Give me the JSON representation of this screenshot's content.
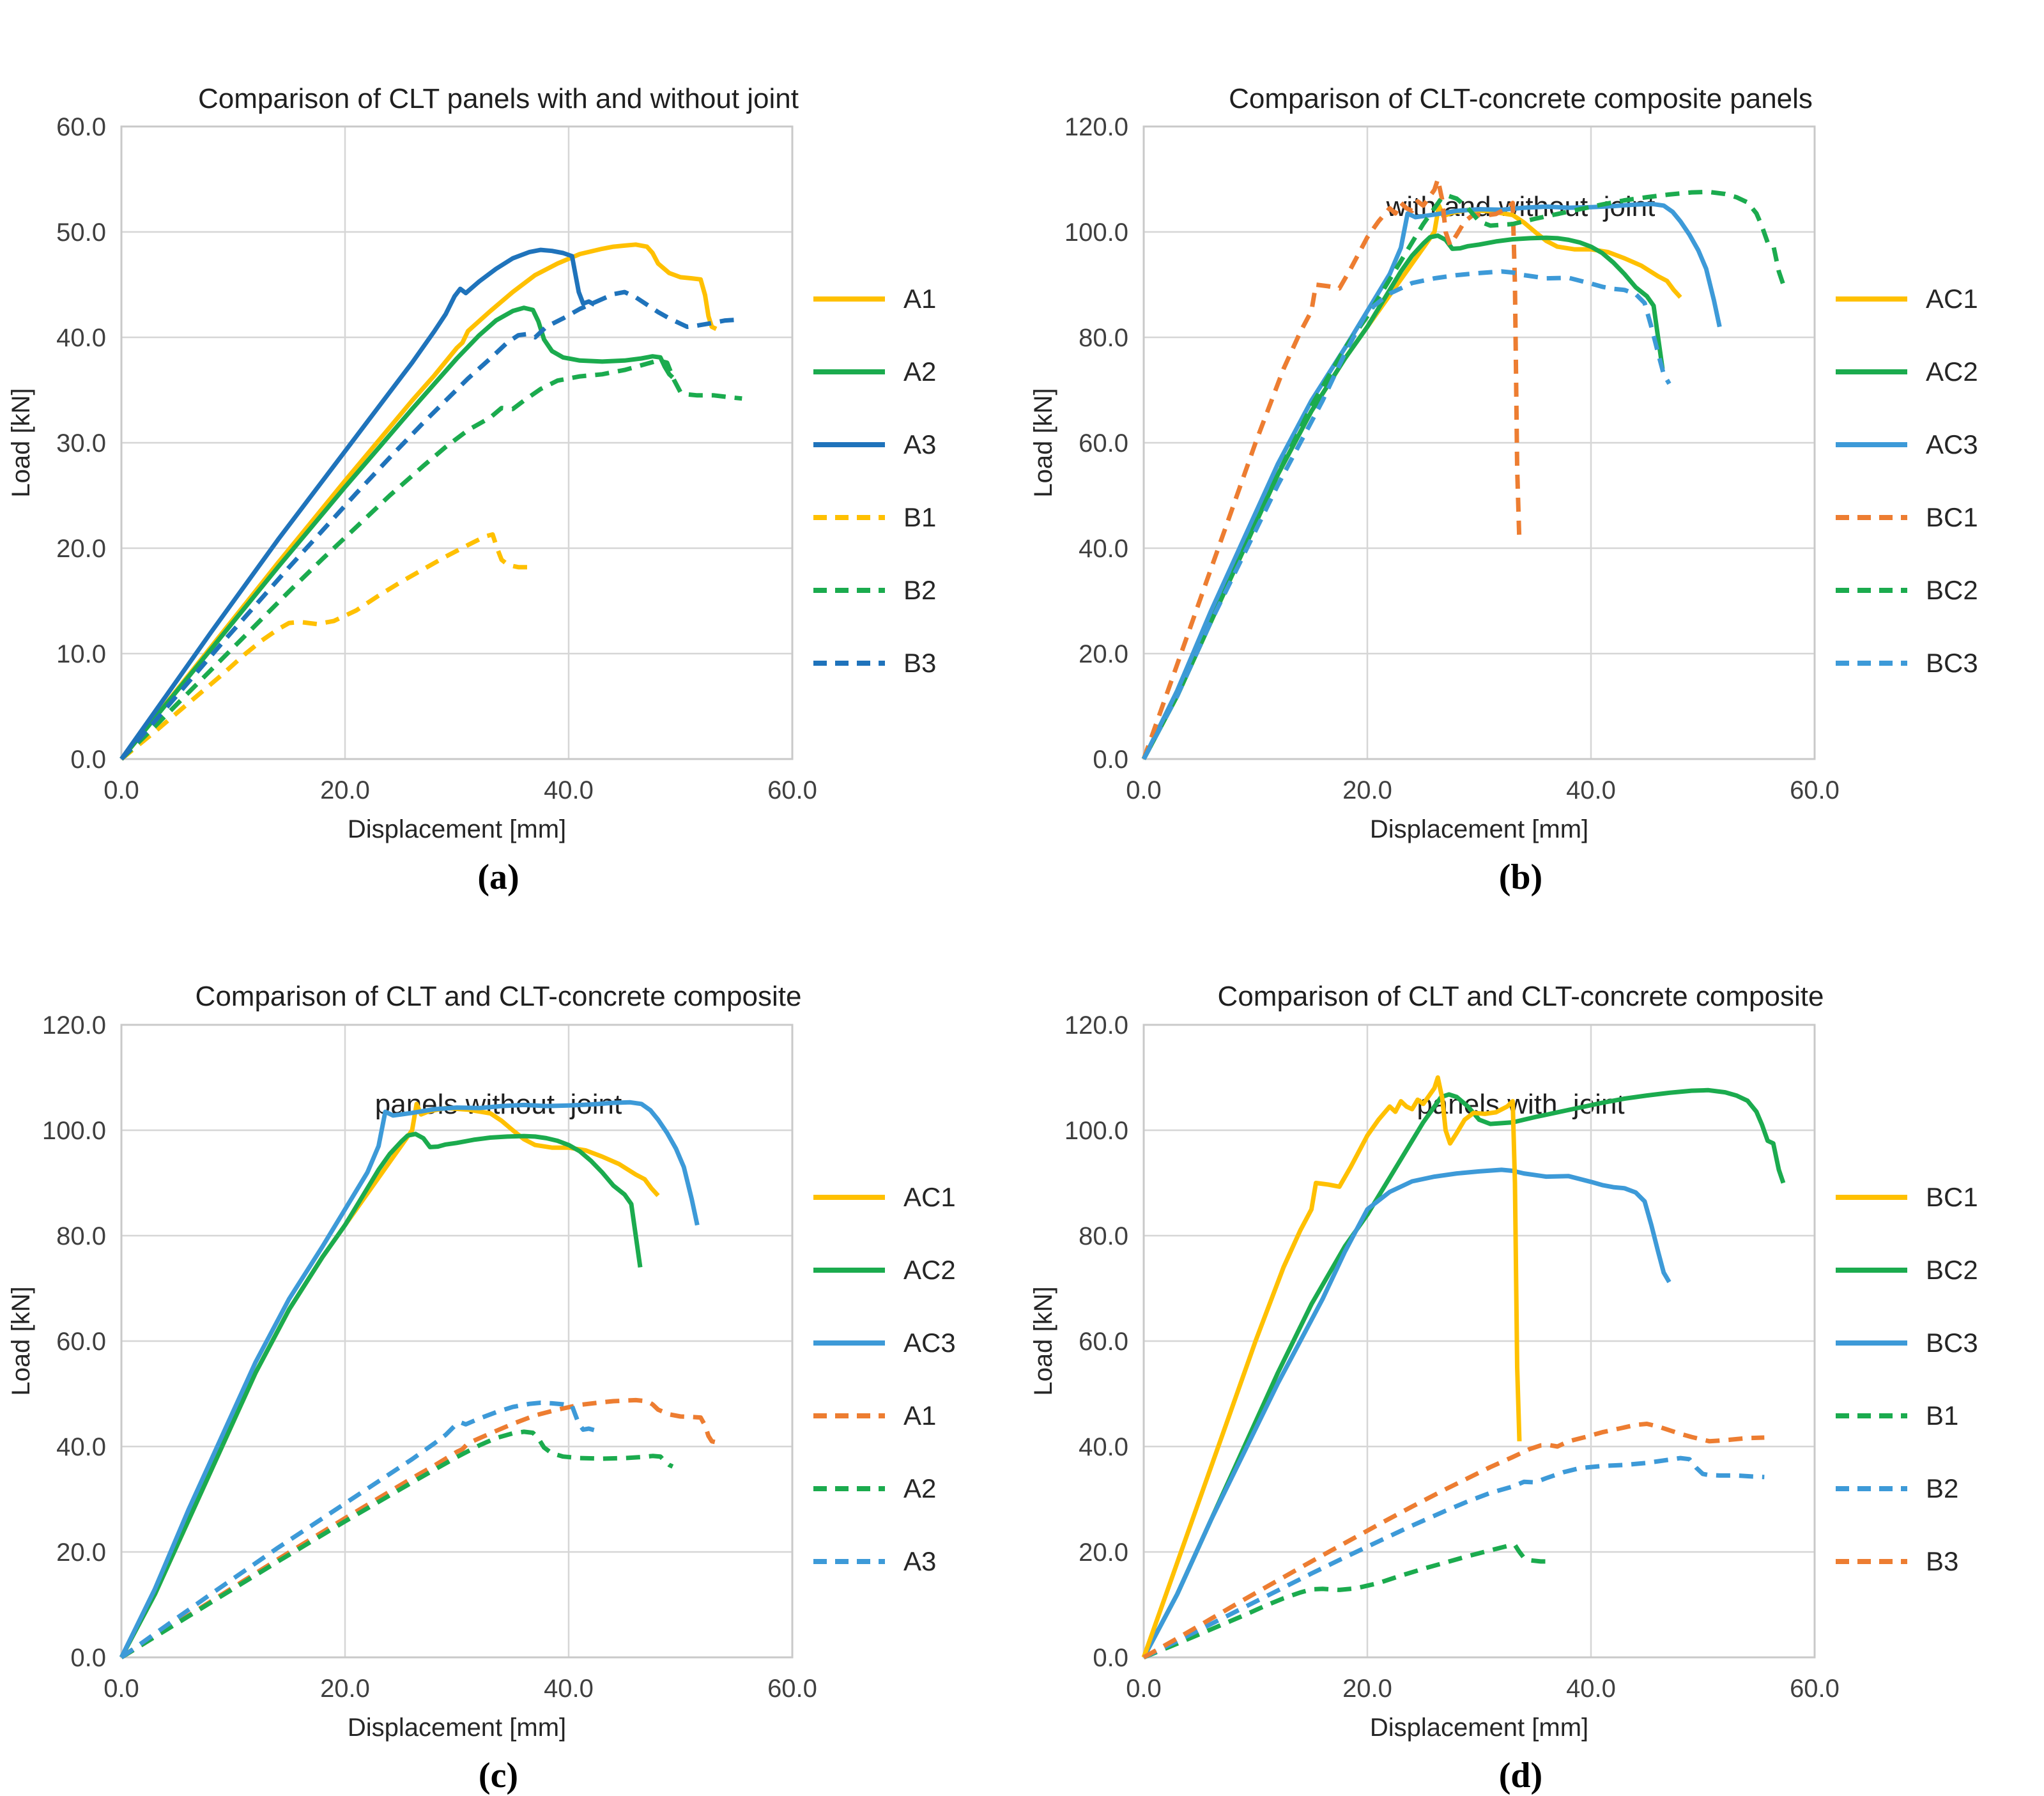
{
  "colors": {
    "yellow": "#FFC000",
    "green": "#1BAB4E",
    "blue_dark": "#1F73BB",
    "blue_light": "#3D9AD8",
    "orange": "#ED7D31",
    "grid": "#D6D6D6",
    "border": "#C9C9C9",
    "tick_text": "#3F3F3F",
    "title_text": "#1F1F1F"
  },
  "curves": {
    "A1": {
      "x": [
        0,
        2,
        5,
        8,
        11,
        14,
        17,
        20,
        23,
        26,
        28,
        30,
        30.5,
        31,
        33,
        35,
        37,
        39,
        41,
        43,
        44,
        45,
        46,
        47,
        47.5,
        48,
        49,
        50,
        51,
        51.8,
        52.2,
        52.5,
        52.8,
        53.2
      ],
      "y": [
        0,
        2.6,
        6.6,
        10.6,
        14.6,
        18.6,
        22.5,
        26.4,
        30.2,
        34,
        36.4,
        39,
        39.5,
        40.6,
        42.5,
        44.3,
        45.9,
        47,
        47.9,
        48.4,
        48.6,
        48.7,
        48.8,
        48.6,
        48,
        47,
        46.1,
        45.7,
        45.6,
        45.5,
        44,
        42,
        41,
        40.8
      ]
    },
    "A2": {
      "x": [
        0,
        2,
        5,
        8,
        11,
        14,
        17,
        20,
        23,
        26,
        28,
        30,
        32,
        33.5,
        35,
        36,
        36.8,
        37.3,
        37.8,
        38.5,
        39.5,
        41,
        43,
        45,
        46.5,
        47.5,
        48.2,
        48.6,
        49,
        49.3
      ],
      "y": [
        0,
        2.6,
        6.5,
        10.4,
        14.3,
        18.2,
        22,
        25.8,
        29.5,
        33.2,
        35.6,
        38,
        40.2,
        41.6,
        42.5,
        42.8,
        42.6,
        41.5,
        39.8,
        38.7,
        38.1,
        37.8,
        37.7,
        37.8,
        38,
        38.2,
        38.1,
        37.2,
        36.5,
        36.2
      ]
    },
    "A3": {
      "x": [
        0,
        2,
        5,
        8,
        11,
        14,
        17,
        20,
        22,
        24,
        26,
        28,
        29,
        29.8,
        30.3,
        30.8,
        32,
        33.5,
        35,
        36.5,
        37.5,
        38.5,
        39.5,
        40.3,
        40.6,
        40.9,
        41.3,
        41.8,
        42.3
      ],
      "y": [
        0,
        3,
        7.5,
        12,
        16.4,
        20.8,
        25,
        29.2,
        32,
        34.8,
        37.6,
        40.6,
        42.2,
        43.9,
        44.6,
        44.2,
        45.3,
        46.5,
        47.5,
        48.1,
        48.3,
        48.2,
        48,
        47.7,
        46,
        44.3,
        43.2,
        43.4,
        43.1
      ]
    },
    "B1": {
      "x": [
        0,
        3,
        6,
        9,
        11,
        12.5,
        14,
        15,
        16,
        17.5,
        19,
        21,
        23,
        25,
        27,
        29,
        31,
        32.5,
        33.2,
        33.6,
        34,
        34.6,
        35.5,
        36.5
      ],
      "y": [
        0,
        2.6,
        5.3,
        8,
        9.9,
        11.2,
        12.3,
        12.9,
        13,
        12.8,
        13.1,
        14.1,
        15.5,
        16.8,
        18,
        19.2,
        20.3,
        21.1,
        21.3,
        20,
        18.9,
        18.4,
        18.2,
        18.2
      ]
    },
    "B2": {
      "x": [
        0,
        3,
        6,
        9,
        12,
        15,
        18,
        21,
        24,
        27,
        29,
        31,
        33,
        34,
        35,
        36,
        37.5,
        39,
        41,
        43,
        45,
        46,
        47,
        48,
        48.8,
        49.4,
        50,
        50.5,
        51.5,
        53,
        54.5,
        55.5
      ],
      "y": [
        0,
        3.1,
        6.3,
        9.5,
        12.7,
        15.9,
        19,
        22,
        25,
        27.8,
        29.6,
        31.2,
        32.4,
        33.3,
        33.2,
        34,
        35.1,
        35.9,
        36.3,
        36.5,
        36.9,
        37.2,
        37.5,
        37.8,
        37.6,
        36,
        34.8,
        34.6,
        34.5,
        34.5,
        34.3,
        34.2
      ]
    },
    "B3": {
      "x": [
        0,
        3,
        6,
        9,
        12,
        15,
        18,
        21,
        24,
        27,
        29,
        31,
        33,
        34.5,
        35.5,
        36.2,
        37,
        38,
        39.5,
        41,
        42.5,
        44,
        45,
        46,
        47,
        48,
        49,
        50,
        50.6,
        51.4,
        52.5,
        54,
        55.5
      ],
      "y": [
        0,
        3.6,
        7.3,
        11,
        14.6,
        18.2,
        21.7,
        25.2,
        28.6,
        31.9,
        34,
        36.1,
        38,
        39.5,
        40.2,
        40.3,
        40,
        41,
        41.8,
        42.7,
        43.4,
        44.1,
        44.3,
        43.8,
        43.1,
        42.4,
        41.8,
        41.3,
        41,
        41.1,
        41.3,
        41.6,
        41.7
      ]
    },
    "AC1": {
      "x": [
        0,
        3,
        6,
        9,
        12,
        15,
        18,
        20,
        22,
        24,
        25,
        26,
        26.4,
        26.8,
        27.5,
        29,
        31,
        33,
        34,
        35,
        36,
        37,
        38.5,
        40,
        41.5,
        43,
        44.5,
        46,
        46.8,
        47.4,
        48
      ],
      "y": [
        0,
        12,
        26,
        40,
        54,
        66,
        76,
        82,
        88,
        94,
        97,
        100,
        105,
        103,
        103.6,
        104.2,
        103.9,
        103.2,
        101.8,
        100,
        98.3,
        97.2,
        96.7,
        96.7,
        96.2,
        95,
        93.6,
        91.6,
        90.7,
        89,
        87.6
      ]
    },
    "AC2": {
      "x": [
        0,
        3,
        6,
        9,
        12,
        15,
        18,
        20,
        22,
        23,
        24,
        25,
        25.6,
        26.3,
        27,
        27.6,
        28.3,
        29,
        30,
        31.5,
        33,
        34.5,
        36,
        37,
        38,
        39,
        40,
        41,
        42,
        43,
        44,
        45,
        45.6,
        46,
        46.4
      ],
      "y": [
        0,
        12,
        26,
        40,
        54,
        66,
        76,
        82,
        89,
        92.5,
        95.5,
        97.8,
        99,
        99.3,
        98.5,
        96.8,
        96.9,
        97.3,
        97.6,
        98.2,
        98.6,
        98.8,
        98.9,
        98.8,
        98.5,
        98,
        97.2,
        96,
        94.2,
        92,
        89.5,
        87.8,
        86,
        80,
        74
      ]
    },
    "AC3": {
      "x": [
        0,
        3,
        6,
        9,
        12,
        15,
        18,
        20,
        22,
        23,
        23.6,
        24.3,
        25,
        26,
        28,
        30,
        32,
        34,
        36,
        38,
        40,
        42,
        44,
        45.5,
        46.5,
        47.3,
        48,
        48.8,
        49.6,
        50.3,
        51,
        51.5
      ],
      "y": [
        0,
        13,
        28,
        42,
        56,
        68,
        78,
        85,
        92,
        97,
        103.5,
        102.8,
        103,
        103.3,
        104,
        104.3,
        104.2,
        104.6,
        104.8,
        104.6,
        104.7,
        104.9,
        105.2,
        105.3,
        105,
        103.8,
        102,
        99.5,
        96.5,
        93,
        87,
        82
      ]
    },
    "BC1": {
      "x": [
        0,
        2.5,
        5,
        7.5,
        10,
        12.5,
        14,
        15,
        15.4,
        16.5,
        17.5,
        18.5,
        20,
        21,
        22,
        22.5,
        23,
        23.5,
        24,
        24.5,
        25,
        25.5,
        26,
        26.3,
        26.7,
        27,
        27.4,
        28,
        28.7,
        29.5,
        30.5,
        31.5,
        32.5,
        33,
        33.2,
        33.4,
        33.6
      ],
      "y": [
        0,
        15,
        30,
        45,
        60,
        74,
        81,
        85,
        90,
        89.7,
        89.3,
        93,
        99,
        102,
        104.5,
        103.5,
        105.5,
        104.5,
        104,
        105.8,
        105,
        106.5,
        108,
        110,
        106,
        100,
        97.5,
        99.5,
        102,
        103.3,
        103.1,
        103.4,
        104.5,
        105.5,
        90,
        55,
        41
      ]
    },
    "BC2": {
      "x": [
        0,
        3,
        6,
        9,
        12,
        15,
        18,
        20,
        22,
        23,
        24,
        25,
        26,
        26.6,
        27.3,
        28,
        29,
        30,
        31,
        33,
        35,
        37,
        39,
        41,
        43,
        45,
        47,
        49,
        50.5,
        52,
        53,
        54,
        54.8,
        55.3,
        55.8,
        56.3,
        56.8,
        57.2
      ],
      "y": [
        0,
        12,
        26,
        40,
        54,
        67,
        78,
        84,
        91,
        94.5,
        98,
        101.5,
        104.5,
        106.3,
        106.8,
        106.3,
        104.5,
        102,
        101.2,
        101.5,
        102.5,
        103.4,
        104.3,
        105.2,
        106,
        106.6,
        107.1,
        107.5,
        107.6,
        107.2,
        106.6,
        105.6,
        103.5,
        101,
        98,
        97.5,
        92.5,
        90
      ]
    },
    "BC3": {
      "x": [
        0,
        3,
        6,
        9,
        12,
        14,
        16,
        18,
        20,
        22,
        24,
        26,
        28,
        30,
        32,
        33,
        34,
        36,
        38,
        40,
        41,
        42,
        43,
        44,
        44.8,
        45.4,
        46,
        46.5,
        47
      ],
      "y": [
        0,
        12,
        26,
        39,
        52,
        60,
        68,
        77,
        85,
        88.3,
        90.3,
        91.2,
        91.8,
        92.2,
        92.5,
        92.3,
        91.8,
        91.2,
        91.3,
        90.2,
        89.6,
        89.2,
        89,
        88.2,
        86.5,
        82,
        77,
        73,
        71.2
      ]
    }
  },
  "chart_data": [
    {
      "id": "a",
      "type": "line",
      "title_lines": [
        "Comparison of CLT panels with and without joint",
        ""
      ],
      "caption": "(a)",
      "xlabel": "Displacement [mm]",
      "ylabel": "Load [kN]",
      "xlim": [
        0,
        60
      ],
      "ylim": [
        0,
        60
      ],
      "xticks": [
        "0.0",
        "20.0",
        "40.0",
        "60.0"
      ],
      "yticks": [
        "0.0",
        "10.0",
        "20.0",
        "30.0",
        "40.0",
        "50.0",
        "60.0"
      ],
      "legend": [
        {
          "label": "A1",
          "color": "yellow",
          "dash": "solid"
        },
        {
          "label": "A2",
          "color": "green",
          "dash": "solid"
        },
        {
          "label": "A3",
          "color": "blue_dark",
          "dash": "solid"
        },
        {
          "label": "B1",
          "color": "yellow",
          "dash": "dashed"
        },
        {
          "label": "B2",
          "color": "green",
          "dash": "dashed"
        },
        {
          "label": "B3",
          "color": "blue_dark",
          "dash": "dashed"
        }
      ],
      "series": [
        {
          "name": "A1",
          "curve": "A1",
          "color": "yellow",
          "dash": "solid"
        },
        {
          "name": "A2",
          "curve": "A2",
          "color": "green",
          "dash": "solid"
        },
        {
          "name": "A3",
          "curve": "A3",
          "color": "blue_dark",
          "dash": "solid"
        },
        {
          "name": "B1",
          "curve": "B1",
          "color": "yellow",
          "dash": "dashed"
        },
        {
          "name": "B2",
          "curve": "B2",
          "color": "green",
          "dash": "dashed"
        },
        {
          "name": "B3",
          "curve": "B3",
          "color": "blue_dark",
          "dash": "dashed"
        }
      ]
    },
    {
      "id": "b",
      "type": "line",
      "title_lines": [
        "Comparison of CLT-concrete composite panels",
        "with and without  joint"
      ],
      "caption": "(b)",
      "xlabel": "Displacement [mm]",
      "ylabel": "Load [kN]",
      "xlim": [
        0,
        60
      ],
      "ylim": [
        0,
        120
      ],
      "xticks": [
        "0.0",
        "20.0",
        "40.0",
        "60.0"
      ],
      "yticks": [
        "0.0",
        "20.0",
        "40.0",
        "60.0",
        "80.0",
        "100.0",
        "120.0"
      ],
      "legend": [
        {
          "label": "AC1",
          "color": "yellow",
          "dash": "solid"
        },
        {
          "label": "AC2",
          "color": "green",
          "dash": "solid"
        },
        {
          "label": "AC3",
          "color": "blue_light",
          "dash": "solid"
        },
        {
          "label": "BC1",
          "color": "orange",
          "dash": "dashed"
        },
        {
          "label": "BC2",
          "color": "green",
          "dash": "dashed"
        },
        {
          "label": "BC3",
          "color": "blue_light",
          "dash": "dashed"
        }
      ],
      "series": [
        {
          "name": "AC1",
          "curve": "AC1",
          "color": "yellow",
          "dash": "solid"
        },
        {
          "name": "AC2",
          "curve": "AC2",
          "color": "green",
          "dash": "solid"
        },
        {
          "name": "AC3",
          "curve": "AC3",
          "color": "blue_light",
          "dash": "solid"
        },
        {
          "name": "BC1",
          "curve": "BC1",
          "color": "orange",
          "dash": "dashed"
        },
        {
          "name": "BC2",
          "curve": "BC2",
          "color": "green",
          "dash": "dashed"
        },
        {
          "name": "BC3",
          "curve": "BC3",
          "color": "blue_light",
          "dash": "dashed"
        }
      ]
    },
    {
      "id": "c",
      "type": "line",
      "title_lines": [
        "Comparison of CLT and CLT-concrete composite",
        "panels without  joint"
      ],
      "caption": "(c)",
      "xlabel": "Displacement [mm]",
      "ylabel": "Load [kN]",
      "xlim": [
        0,
        60
      ],
      "ylim": [
        0,
        120
      ],
      "xticks": [
        "0.0",
        "20.0",
        "40.0",
        "60.0"
      ],
      "yticks": [
        "0.0",
        "20.0",
        "40.0",
        "60.0",
        "80.0",
        "100.0",
        "120.0"
      ],
      "legend": [
        {
          "label": "AC1",
          "color": "yellow",
          "dash": "solid"
        },
        {
          "label": "AC2",
          "color": "green",
          "dash": "solid"
        },
        {
          "label": "AC3",
          "color": "blue_light",
          "dash": "solid"
        },
        {
          "label": "A1",
          "color": "orange",
          "dash": "dashed"
        },
        {
          "label": "A2",
          "color": "green",
          "dash": "dashed"
        },
        {
          "label": "A3",
          "color": "blue_light",
          "dash": "dashed"
        }
      ],
      "series": [
        {
          "name": "AC1",
          "curve": "AC1",
          "color": "yellow",
          "dash": "solid"
        },
        {
          "name": "AC2",
          "curve": "AC2",
          "color": "green",
          "dash": "solid"
        },
        {
          "name": "AC3",
          "curve": "AC3",
          "color": "blue_light",
          "dash": "solid"
        },
        {
          "name": "A1",
          "curve": "A1",
          "color": "orange",
          "dash": "dashed"
        },
        {
          "name": "A2",
          "curve": "A2",
          "color": "green",
          "dash": "dashed"
        },
        {
          "name": "A3",
          "curve": "A3",
          "color": "blue_light",
          "dash": "dashed"
        }
      ]
    },
    {
      "id": "d",
      "type": "line",
      "title_lines": [
        "Comparison of CLT and CLT-concrete composite",
        "panels with  joint"
      ],
      "caption": "(d)",
      "xlabel": "Displacement [mm]",
      "ylabel": "Load [kN]",
      "xlim": [
        0,
        60
      ],
      "ylim": [
        0,
        120
      ],
      "xticks": [
        "0.0",
        "20.0",
        "40.0",
        "60.0"
      ],
      "yticks": [
        "0.0",
        "20.0",
        "40.0",
        "60.0",
        "80.0",
        "100.0",
        "120.0"
      ],
      "legend": [
        {
          "label": "BC1",
          "color": "yellow",
          "dash": "solid"
        },
        {
          "label": "BC2",
          "color": "green",
          "dash": "solid"
        },
        {
          "label": "BC3",
          "color": "blue_light",
          "dash": "solid"
        },
        {
          "label": "B1",
          "color": "green",
          "dash": "dashed"
        },
        {
          "label": "B2",
          "color": "blue_light",
          "dash": "dashed"
        },
        {
          "label": "B3",
          "color": "orange",
          "dash": "dashed"
        }
      ],
      "series": [
        {
          "name": "BC2",
          "curve": "BC2",
          "color": "green",
          "dash": "solid"
        },
        {
          "name": "BC3",
          "curve": "BC3",
          "color": "blue_light",
          "dash": "solid"
        },
        {
          "name": "BC1",
          "curve": "BC1",
          "color": "yellow",
          "dash": "solid"
        },
        {
          "name": "B1",
          "curve": "B1",
          "color": "green",
          "dash": "dashed"
        },
        {
          "name": "B2",
          "curve": "B2",
          "color": "blue_light",
          "dash": "dashed"
        },
        {
          "name": "B3",
          "curve": "B3",
          "color": "orange",
          "dash": "dashed"
        }
      ]
    }
  ]
}
